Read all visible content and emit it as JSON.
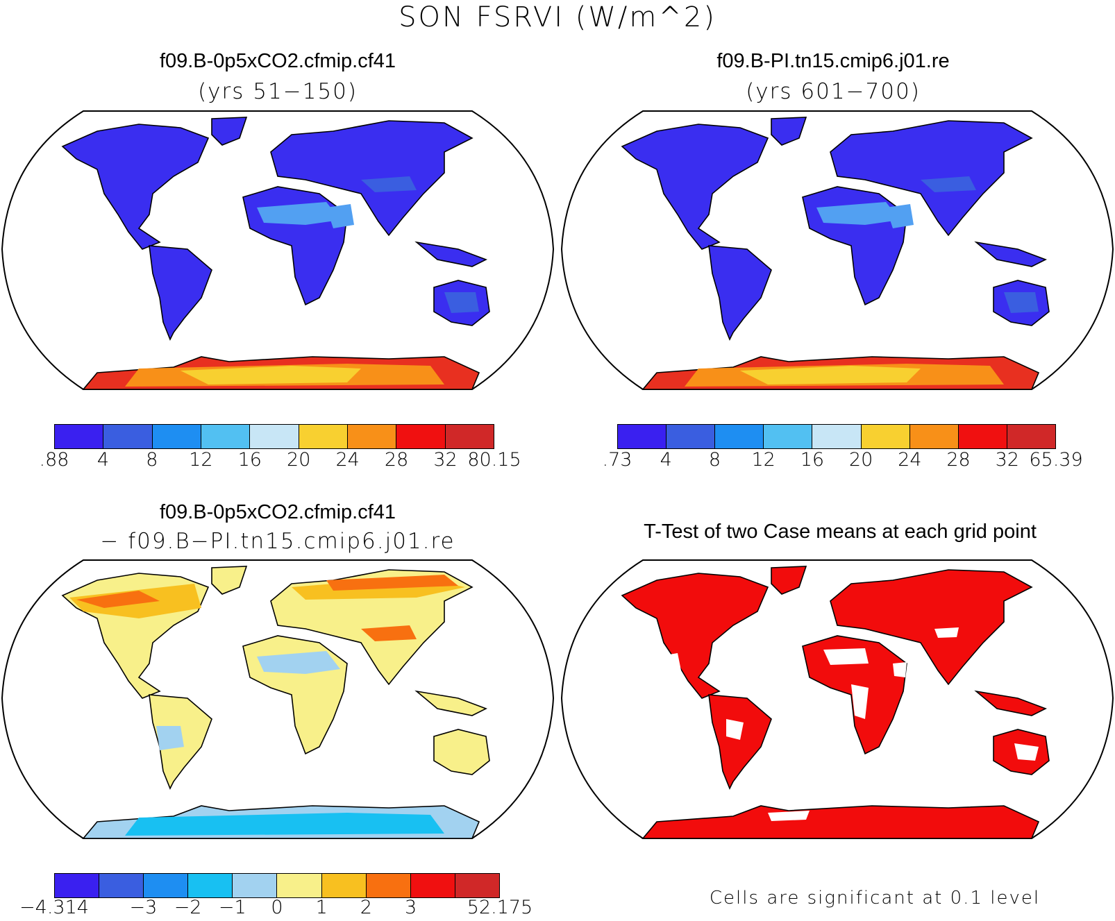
{
  "title": "SON FSRVI (W/m^2)",
  "panels": [
    {
      "id": "p1",
      "title": "f09.B-0p5xCO2.cfmip.cf41",
      "subtitle": "(yrs 51−150)",
      "shading": "absolute",
      "colorbar": {
        "colors": [
          "#3a20f0",
          "#3a5ee0",
          "#1e8ef2",
          "#52c0f2",
          "#c8e6f6",
          "#f8d030",
          "#f89018",
          "#f01010",
          "#d02828"
        ],
        "labels": [
          ".88",
          "4",
          "8",
          "12",
          "16",
          "20",
          "24",
          "28",
          "32",
          "80.15"
        ]
      }
    },
    {
      "id": "p2",
      "title": "f09.B-PI.tn15.cmip6.j01.re",
      "subtitle": "(yrs 601−700)",
      "shading": "absolute",
      "colorbar": {
        "colors": [
          "#3a20f0",
          "#3a5ee0",
          "#1e8ef2",
          "#52c0f2",
          "#c8e6f6",
          "#f8d030",
          "#f89018",
          "#f01010",
          "#d02828"
        ],
        "labels": [
          ".73",
          "4",
          "8",
          "12",
          "16",
          "20",
          "24",
          "28",
          "32",
          "65.39"
        ]
      }
    },
    {
      "id": "p3",
      "title": "f09.B-0p5xCO2.cfmip.cf41",
      "subtitle": "− f09.B−PI.tn15.cmip6.j01.re",
      "shading": "difference",
      "colorbar": {
        "colors": [
          "#3a20f0",
          "#3a5ee0",
          "#1e8ef2",
          "#18c0f2",
          "#a2d2f0",
          "#f8f08a",
          "#f8c020",
          "#f87010",
          "#f01010",
          "#d02828"
        ],
        "labels": [
          "−4.314",
          "−3",
          "−2",
          "−1",
          "0",
          "1",
          "2",
          "3",
          "52.175"
        ]
      }
    },
    {
      "id": "p4",
      "title": "T-Test of two Case means at each grid point",
      "subtitle": "",
      "shading": "significance",
      "note": "Cells are significant at 0.1 level"
    }
  ],
  "colors": {
    "sig": "#f20c0c",
    "land_p1": "#3a2ef0",
    "antarctic": "#e83020"
  }
}
